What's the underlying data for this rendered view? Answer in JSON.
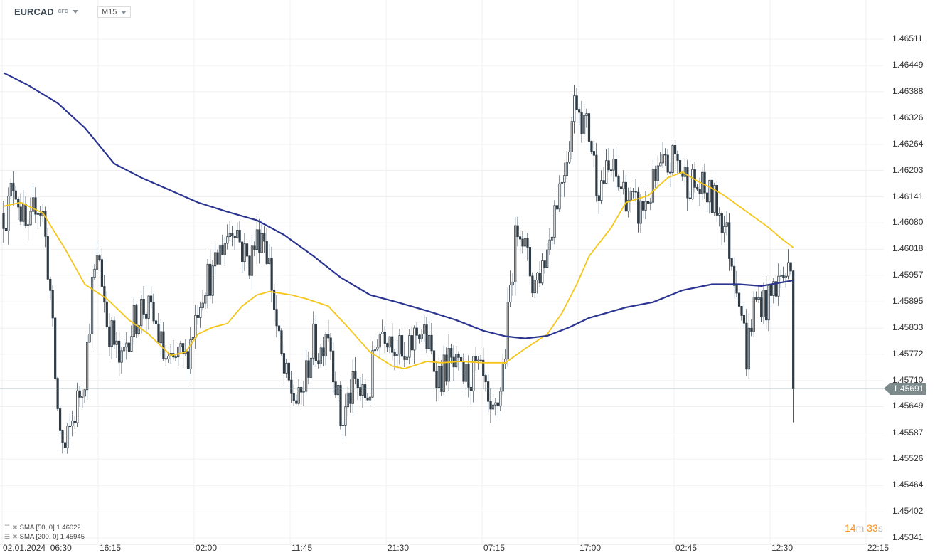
{
  "header": {
    "symbol": "EURCAD",
    "instrument_type": "CFD",
    "timeframe": "M15"
  },
  "legend": [
    {
      "label": "SMA [50, 0] 1.46022",
      "color": "#f5c518"
    },
    {
      "label": "SMA [200, 0] 1.45945",
      "color": "#2b3590"
    }
  ],
  "timer": {
    "minutes": "14",
    "m": "m",
    "seconds": "33",
    "s": "s"
  },
  "current_price": "1.45691",
  "chart_data": {
    "type": "candlestick",
    "title": "EURCAD M15",
    "price_ticks": [
      "1.46511",
      "1.46449",
      "1.46388",
      "1.46326",
      "1.46264",
      "1.46203",
      "1.46141",
      "1.46080",
      "1.46018",
      "1.45957",
      "1.45895",
      "1.45833",
      "1.45772",
      "1.45710",
      "1.45649",
      "1.45587",
      "1.45526",
      "1.45464",
      "1.45402",
      "1.45341"
    ],
    "time_ticks": [
      "02.01.2024  06:30",
      "16:15",
      "02:00",
      "11:45",
      "21:30",
      "07:15",
      "17:00",
      "02:45",
      "12:30",
      "22:15"
    ],
    "ylim": [
      1.45341,
      1.46511
    ],
    "bars_total": 322,
    "anchor_step_bars": 2.89,
    "first_anchor_bar": 1.45,
    "close_anchors": [
      1.46103,
      1.46186,
      1.46103,
      1.46036,
      1.46136,
      1.46103,
      1.45936,
      1.45652,
      1.45535,
      1.45602,
      1.45668,
      1.45735,
      1.45936,
      1.46002,
      1.45852,
      1.45802,
      1.45735,
      1.45819,
      1.45852,
      1.45885,
      1.45869,
      1.45835,
      1.45769,
      1.45735,
      1.45769,
      1.45752,
      1.45819,
      1.45902,
      1.45952,
      1.45952,
      1.46019,
      1.46052,
      1.46086,
      1.46019,
      1.45986,
      1.46036,
      1.46069,
      1.45969,
      1.45819,
      1.45718,
      1.45685,
      1.45652,
      1.45718,
      1.45802,
      1.45769,
      1.45852,
      1.45735,
      1.45602,
      1.45668,
      1.45702,
      1.45668,
      1.45685,
      1.45819,
      1.45835,
      1.45819,
      1.45785,
      1.45735,
      1.45802,
      1.45835,
      1.45802,
      1.45752,
      1.45718,
      1.45752,
      1.45735,
      1.45718,
      1.45718,
      1.45735,
      1.45702,
      1.45602,
      1.45652,
      1.45769,
      1.45969,
      1.46103,
      1.46002,
      1.45936,
      1.45969,
      1.46019,
      1.46119,
      1.46186,
      1.4627,
      1.46386,
      1.4632,
      1.46286,
      1.46169,
      1.46186,
      1.46203,
      1.46169,
      1.46153,
      1.46119,
      1.46103,
      1.46136,
      1.46169,
      1.46203,
      1.46211,
      1.46236,
      1.46194,
      1.46178,
      1.46161,
      1.46153,
      1.46136,
      1.46119,
      1.46069,
      1.45986,
      1.45919,
      1.45769,
      1.45885,
      1.45902,
      1.45885,
      1.45936,
      1.45952,
      1.45969
    ],
    "last_close": 1.45691,
    "series": [
      {
        "name": "SMA 50",
        "color": "#f5c518",
        "points": [
          [
            0,
            1.46119
          ],
          [
            7,
            1.46128
          ],
          [
            16,
            1.46103
          ],
          [
            25,
            1.46019
          ],
          [
            33,
            1.45936
          ],
          [
            42,
            1.45902
          ],
          [
            51,
            1.45852
          ],
          [
            59,
            1.45819
          ],
          [
            68,
            1.45769
          ],
          [
            74,
            1.45777
          ],
          [
            79,
            1.45819
          ],
          [
            85,
            1.45835
          ],
          [
            91,
            1.45844
          ],
          [
            97,
            1.45885
          ],
          [
            103,
            1.45911
          ],
          [
            108,
            1.45919
          ],
          [
            117,
            1.45911
          ],
          [
            123,
            1.45902
          ],
          [
            132,
            1.45885
          ],
          [
            140,
            1.45835
          ],
          [
            149,
            1.45777
          ],
          [
            158,
            1.45744
          ],
          [
            163,
            1.45738
          ],
          [
            172,
            1.45755
          ],
          [
            178,
            1.45752
          ],
          [
            186,
            1.45755
          ],
          [
            195,
            1.45752
          ],
          [
            204,
            1.45752
          ],
          [
            212,
            1.45785
          ],
          [
            221,
            1.45819
          ],
          [
            227,
            1.45869
          ],
          [
            233,
            1.45936
          ],
          [
            238,
            1.46002
          ],
          [
            247,
            1.46069
          ],
          [
            253,
            1.46128
          ],
          [
            262,
            1.46144
          ],
          [
            270,
            1.46186
          ],
          [
            276,
            1.46199
          ],
          [
            282,
            1.46178
          ],
          [
            288,
            1.46161
          ],
          [
            293,
            1.46144
          ],
          [
            299,
            1.46119
          ],
          [
            305,
            1.46094
          ],
          [
            311,
            1.46069
          ],
          [
            316,
            1.46044
          ],
          [
            321,
            1.46022
          ]
        ]
      },
      {
        "name": "SMA 200",
        "color": "#2b3590",
        "points": [
          [
            0,
            1.46432
          ],
          [
            10,
            1.46403
          ],
          [
            22,
            1.46361
          ],
          [
            33,
            1.46303
          ],
          [
            45,
            1.46219
          ],
          [
            56,
            1.46186
          ],
          [
            68,
            1.46156
          ],
          [
            79,
            1.46128
          ],
          [
            91,
            1.46106
          ],
          [
            103,
            1.46086
          ],
          [
            114,
            1.46052
          ],
          [
            126,
            1.46002
          ],
          [
            137,
            1.45952
          ],
          [
            149,
            1.45911
          ],
          [
            160,
            1.45894
          ],
          [
            172,
            1.45874
          ],
          [
            184,
            1.45852
          ],
          [
            195,
            1.45827
          ],
          [
            204,
            1.45814
          ],
          [
            212,
            1.45809
          ],
          [
            221,
            1.45815
          ],
          [
            230,
            1.45835
          ],
          [
            238,
            1.45857
          ],
          [
            247,
            1.45872
          ],
          [
            253,
            1.45882
          ],
          [
            264,
            1.45894
          ],
          [
            276,
            1.45922
          ],
          [
            288,
            1.45936
          ],
          [
            299,
            1.45936
          ],
          [
            308,
            1.45932
          ],
          [
            321,
            1.45945
          ]
        ]
      }
    ],
    "grid": true
  }
}
